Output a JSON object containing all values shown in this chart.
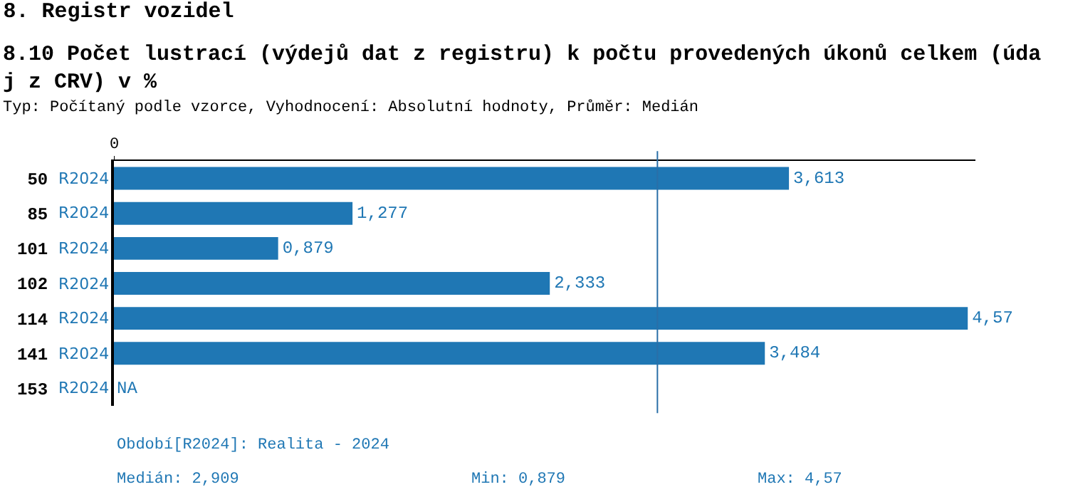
{
  "chart_data": {
    "type": "bar",
    "orientation": "horizontal",
    "title": "8. Registr vozidel",
    "subtitle": "8.10 Počet lustrací (výdejů dat z registru) k počtu provedených úkonů celkem (údaj z CRV) v %",
    "categories": [
      "50",
      "85",
      "101",
      "102",
      "114",
      "141",
      "153"
    ],
    "series": [
      {
        "name": "R2024",
        "color": "#1f77b4",
        "values": [
          3.613,
          1.277,
          0.879,
          2.333,
          4.57,
          3.484,
          null
        ],
        "value_labels": [
          "3,613",
          "1,277",
          "0,879",
          "2,333",
          "4,57",
          "3,484",
          "NA"
        ]
      }
    ],
    "ref_lines": [
      {
        "axis": "x",
        "value": 2.909,
        "color": "#2a6fa8"
      }
    ],
    "annotations": [
      "Typ: Počítaný podle vzorce, Vyhodnocení: Absolutní hodnoty, Průměr: Medián",
      "0",
      "Období[R2024]: Realita - 2024",
      "Medián: 2,909",
      "Min: 0,879",
      "Max: 4,57"
    ],
    "grid": false,
    "legend": false
  }
}
